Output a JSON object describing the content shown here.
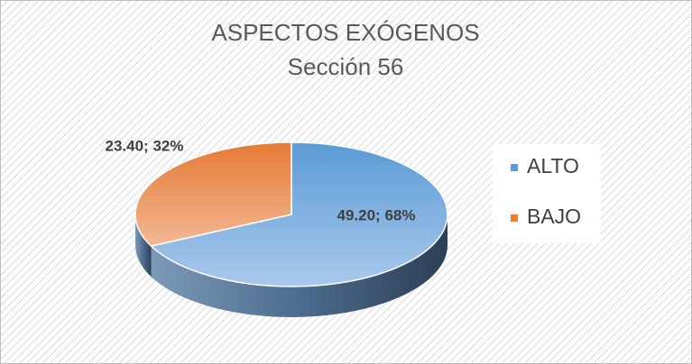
{
  "chart_data": {
    "type": "pie3d",
    "title": "ASPECTOS EXÓGENOS",
    "subtitle": "Sección 56",
    "categories": [
      "ALTO",
      "BAJO"
    ],
    "values": [
      49.2,
      23.4
    ],
    "value_labels": [
      "49.20; 68%",
      "23.40; 32%"
    ],
    "colors": [
      "#5b9bd5",
      "#ed7d31"
    ],
    "legend": "right"
  }
}
